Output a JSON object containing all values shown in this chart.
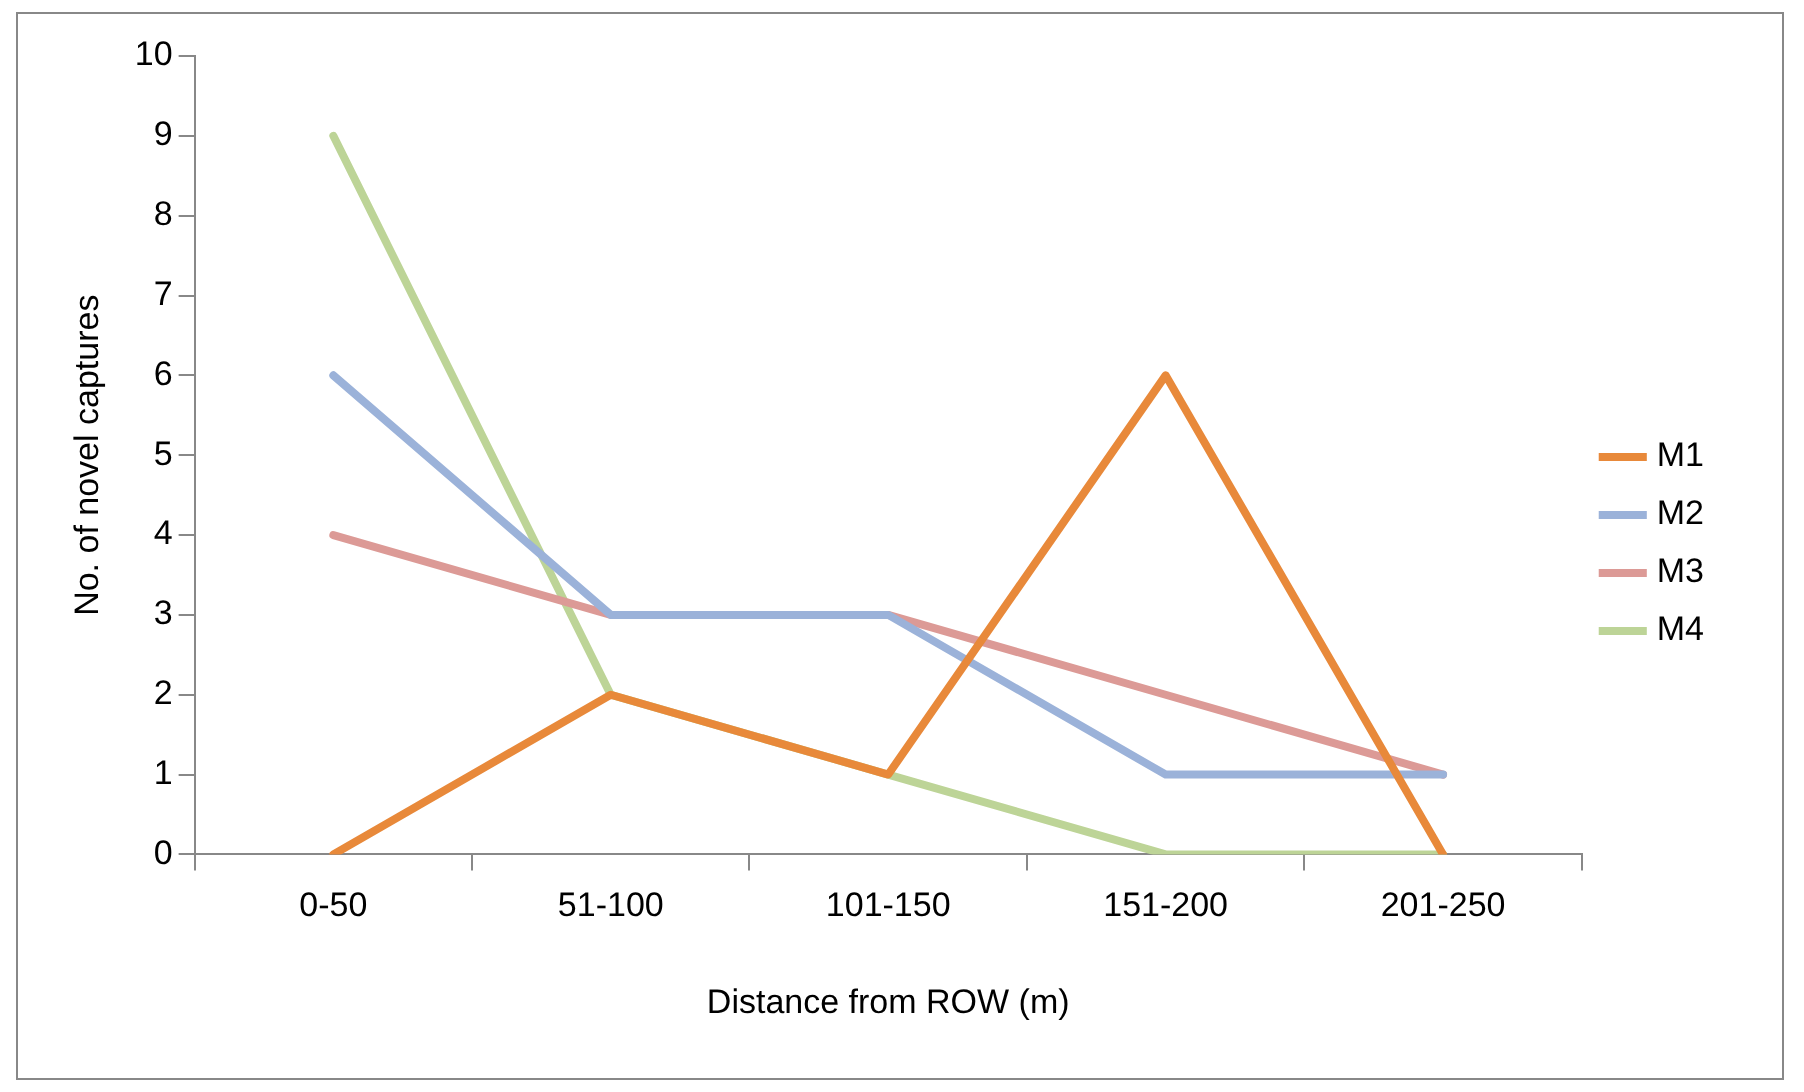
{
  "chart_data": {
    "type": "line",
    "xlabel": "Distance from ROW (m)",
    "ylabel": "No. of novel captures",
    "categories": [
      "0-50",
      "51-100",
      "101-150",
      "151-200",
      "201-250"
    ],
    "series": [
      {
        "name": "M1",
        "color": "#e8893a",
        "values": [
          0,
          2,
          1,
          6,
          0
        ]
      },
      {
        "name": "M2",
        "color": "#9bb2d9",
        "values": [
          6,
          3,
          3,
          1,
          1
        ]
      },
      {
        "name": "M3",
        "color": "#dc9a96",
        "values": [
          4,
          3,
          3,
          2,
          1
        ]
      },
      {
        "name": "M4",
        "color": "#bdd497",
        "values": [
          9,
          2,
          1,
          0,
          0
        ]
      }
    ],
    "ylim": [
      0,
      10
    ],
    "yticks": [
      0,
      1,
      2,
      3,
      4,
      5,
      6,
      7,
      8,
      9,
      10
    ],
    "legend": "right",
    "marker": "none"
  }
}
